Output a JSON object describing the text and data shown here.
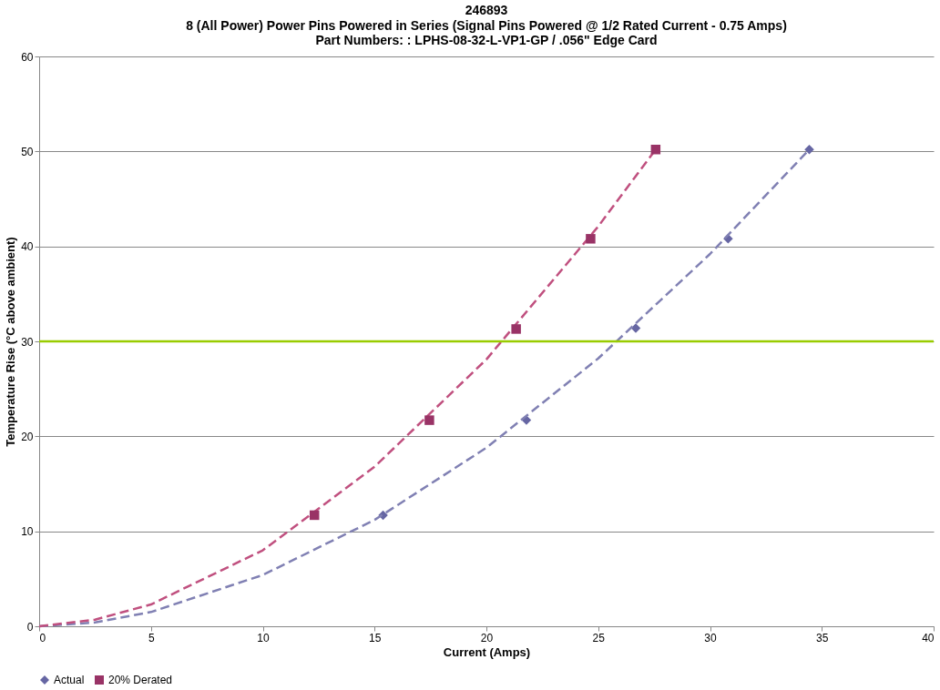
{
  "chart_data": {
    "type": "scatter",
    "title": "246893",
    "subtitle": "8 (All Power) Power Pins Powered in Series (Signal Pins Powered @ 1/2 Rated Current - 0.75 Amps)\nPart Numbers: : LPHS-08-32-L-VP1-GP / .056\" Edge Card",
    "xlabel": "Current (Amps)",
    "ylabel": "Temperature Rise (°C above ambient)",
    "xlim": [
      0,
      40
    ],
    "xticks": [
      0,
      5,
      10,
      15,
      20,
      25,
      30,
      35,
      40
    ],
    "ylim": [
      0,
      60
    ],
    "yticks": [
      0,
      10,
      20,
      30,
      40,
      50,
      60
    ],
    "grid": "y",
    "legend": "bottom",
    "series": [
      {
        "name": "Actual",
        "color": "#6666a3",
        "marker": "diamond",
        "x": [
          15.38,
          21.79,
          26.68,
          30.81,
          34.44
        ],
        "values": [
          11.7,
          21.7,
          31.4,
          40.8,
          50.2
        ]
      },
      {
        "name": "20% Derated",
        "color": "#993366",
        "marker": "square",
        "x": [
          12.31,
          17.45,
          21.33,
          24.66,
          27.57
        ],
        "values": [
          11.7,
          21.7,
          31.3,
          40.8,
          50.2
        ]
      },
      {
        "type": "line",
        "line_style": "dashed",
        "marker": "none",
        "color": "#8080b3",
        "x": [
          0,
          2.5,
          5,
          10,
          15,
          20,
          25,
          30,
          34.44
        ],
        "values": [
          0,
          0.4,
          1.5,
          5.4,
          11.2,
          18.8,
          28.2,
          39.2,
          50.2
        ]
      },
      {
        "type": "line",
        "line_style": "dashed",
        "marker": "none",
        "color": "#c0507f",
        "x": [
          0,
          2.5,
          5,
          10,
          15,
          20,
          25,
          27.57
        ],
        "values": [
          0,
          0.7,
          2.3,
          8,
          16.8,
          28.1,
          42.1,
          50.2
        ]
      }
    ],
    "ref_lines": [
      {
        "axis": "y",
        "value": 30,
        "color": "#99cc00"
      }
    ]
  }
}
